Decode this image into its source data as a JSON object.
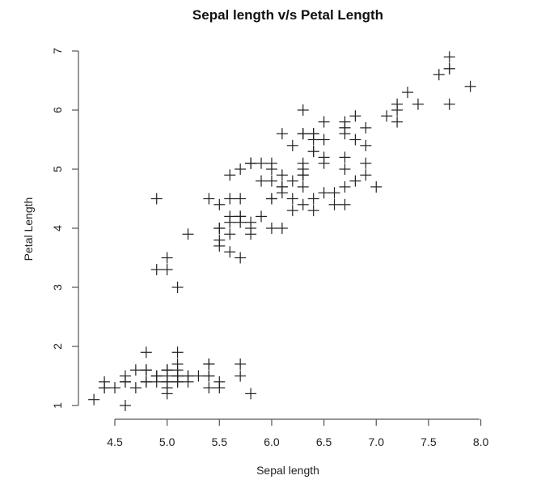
{
  "chart_data": {
    "type": "scatter",
    "title": "Sepal length v/s Petal Length",
    "xlabel": "Sepal length",
    "ylabel": "Petal Length",
    "xlim": [
      4.3,
      7.9
    ],
    "ylim": [
      1.0,
      6.9
    ],
    "x_ticks": [
      "4.5",
      "5.0",
      "5.5",
      "6.0",
      "6.5",
      "7.0",
      "7.5",
      "8.0"
    ],
    "y_ticks": [
      "1",
      "2",
      "3",
      "4",
      "5",
      "6",
      "7"
    ],
    "grid": false,
    "legend": null,
    "marker": "plus",
    "marker_color": "#222222",
    "x": [
      5.1,
      4.9,
      4.7,
      4.6,
      5.0,
      5.4,
      4.6,
      5.0,
      4.4,
      4.9,
      5.4,
      4.8,
      4.8,
      4.3,
      5.8,
      5.7,
      5.4,
      5.1,
      5.7,
      5.1,
      5.4,
      5.1,
      4.6,
      5.1,
      4.8,
      5.0,
      5.0,
      5.2,
      5.2,
      4.7,
      4.8,
      5.4,
      5.2,
      5.5,
      4.9,
      5.0,
      5.5,
      4.9,
      4.4,
      5.1,
      5.0,
      4.5,
      4.4,
      5.0,
      5.1,
      4.8,
      5.1,
      4.6,
      5.3,
      5.0,
      7.0,
      6.4,
      6.9,
      5.5,
      6.5,
      5.7,
      6.3,
      4.9,
      6.6,
      5.2,
      5.0,
      5.9,
      6.0,
      6.1,
      5.6,
      6.7,
      5.6,
      5.8,
      6.2,
      5.6,
      5.9,
      6.1,
      6.3,
      6.1,
      6.4,
      6.6,
      6.8,
      6.7,
      6.0,
      5.7,
      5.5,
      5.5,
      5.8,
      6.0,
      5.4,
      6.0,
      6.7,
      6.3,
      5.6,
      5.5,
      5.5,
      6.1,
      5.8,
      5.0,
      5.6,
      5.7,
      5.7,
      6.2,
      5.1,
      5.7,
      6.3,
      5.8,
      7.1,
      6.3,
      6.5,
      7.6,
      4.9,
      7.3,
      6.7,
      7.2,
      6.5,
      6.4,
      6.8,
      5.7,
      5.8,
      6.4,
      6.5,
      7.7,
      7.7,
      6.0,
      6.9,
      5.6,
      7.7,
      6.3,
      6.7,
      7.2,
      6.2,
      6.1,
      6.4,
      7.2,
      7.4,
      7.9,
      6.4,
      6.3,
      6.1,
      7.7,
      6.3,
      6.4,
      6.0,
      6.9,
      6.7,
      6.9,
      5.8,
      6.8,
      6.7,
      6.7,
      6.3,
      6.5,
      6.2,
      5.9
    ],
    "y": [
      1.4,
      1.4,
      1.3,
      1.5,
      1.4,
      1.7,
      1.4,
      1.5,
      1.4,
      1.5,
      1.5,
      1.6,
      1.4,
      1.1,
      1.2,
      1.5,
      1.3,
      1.4,
      1.7,
      1.5,
      1.7,
      1.5,
      1.0,
      1.7,
      1.9,
      1.6,
      1.6,
      1.5,
      1.4,
      1.6,
      1.6,
      1.5,
      1.5,
      1.4,
      1.5,
      1.2,
      1.3,
      1.5,
      1.3,
      1.5,
      1.3,
      1.3,
      1.3,
      1.6,
      1.9,
      1.4,
      1.6,
      1.4,
      1.5,
      1.4,
      4.7,
      4.5,
      4.9,
      4.0,
      4.6,
      4.5,
      4.7,
      3.3,
      4.6,
      3.9,
      3.5,
      4.2,
      4.0,
      4.7,
      3.6,
      4.4,
      4.5,
      4.1,
      4.5,
      3.9,
      4.8,
      4.0,
      4.9,
      4.7,
      4.3,
      4.4,
      4.8,
      5.0,
      4.5,
      3.5,
      3.8,
      3.7,
      3.9,
      5.1,
      4.5,
      4.5,
      4.7,
      4.4,
      4.1,
      4.0,
      4.4,
      4.6,
      4.0,
      3.3,
      4.2,
      4.2,
      4.2,
      4.3,
      3.0,
      4.1,
      6.0,
      5.1,
      5.9,
      5.6,
      5.8,
      6.6,
      4.5,
      6.3,
      5.8,
      6.1,
      5.1,
      5.3,
      5.5,
      5.0,
      5.1,
      5.3,
      5.5,
      6.7,
      6.9,
      5.0,
      5.7,
      4.9,
      6.7,
      4.9,
      5.7,
      6.0,
      4.8,
      4.9,
      5.6,
      5.8,
      6.1,
      6.4,
      5.6,
      5.1,
      5.6,
      6.1,
      5.6,
      5.5,
      4.8,
      5.4,
      5.6,
      5.1,
      5.1,
      5.9,
      5.7,
      5.2,
      5.0,
      5.2,
      5.4,
      5.1
    ]
  }
}
